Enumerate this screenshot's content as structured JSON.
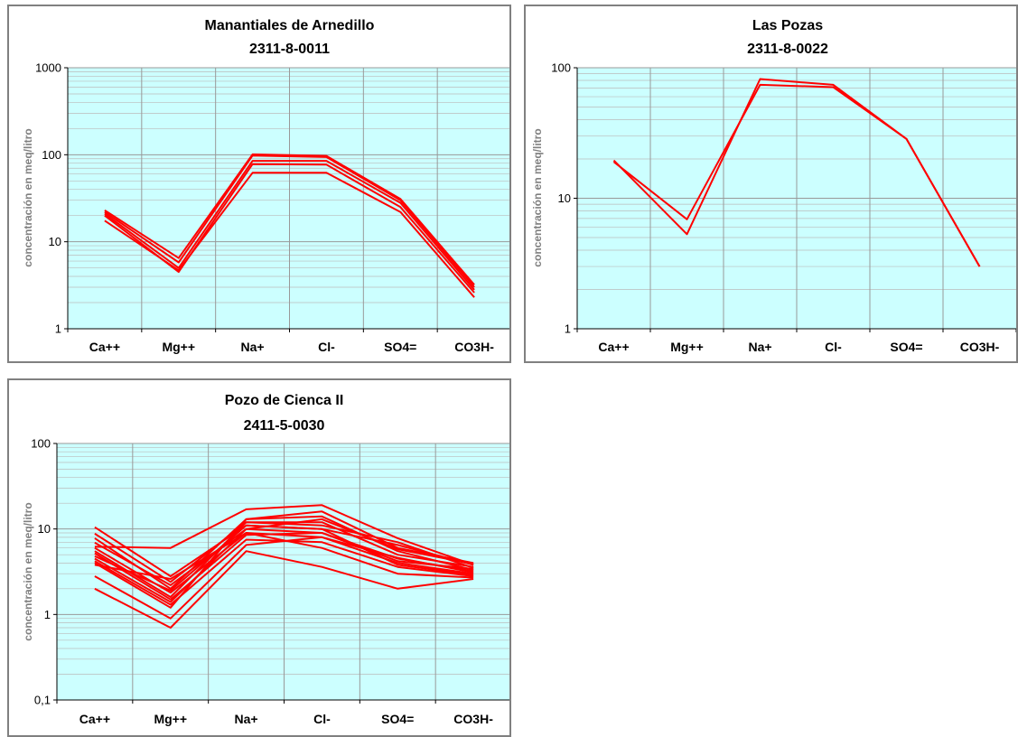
{
  "colors": {
    "plot_bg": "#ccffff",
    "line": "#ff0000",
    "grid": "#999999",
    "minor_grid": "#bbbbbb",
    "border": "#808080"
  },
  "chart_data": [
    {
      "type": "line",
      "title": "Manantiales de Arnedillo",
      "subtitle": "2311-8-0011",
      "ylabel": "concentración en meq/litro",
      "yscale": "log",
      "ylim": [
        1,
        1000
      ],
      "yticks": [
        "1",
        "10",
        "100",
        "1000"
      ],
      "categories": [
        "Ca++",
        "Mg++",
        "Na+",
        "Cl-",
        "SO4=",
        "CO3H-"
      ],
      "series": [
        {
          "values": [
            23,
            6.5,
            101,
            97,
            31,
            3.2
          ]
        },
        {
          "values": [
            22,
            5.8,
            98,
            94,
            30,
            3.0
          ]
        },
        {
          "values": [
            21,
            5.0,
            85,
            85,
            28,
            2.8
          ]
        },
        {
          "values": [
            20,
            4.5,
            78,
            77,
            25,
            2.6
          ]
        },
        {
          "values": [
            17.5,
            4.7,
            62,
            62,
            22,
            2.3
          ]
        }
      ]
    },
    {
      "type": "line",
      "title": "Las Pozas",
      "subtitle": "2311-8-0022",
      "ylabel": "concentración en meq/litro",
      "yscale": "log",
      "ylim": [
        1,
        100
      ],
      "yticks": [
        "1",
        "10",
        "100"
      ],
      "categories": [
        "Ca++",
        "Mg++",
        "Na+",
        "Cl-",
        "SO4=",
        "CO3H-"
      ],
      "series": [
        {
          "values": [
            19.5,
            5.3,
            82,
            74,
            28.5,
            3.0
          ]
        },
        {
          "values": [
            19.0,
            6.9,
            74,
            71,
            28.5,
            3.0
          ]
        }
      ]
    },
    {
      "type": "line",
      "title": "Pozo de Cienca II",
      "subtitle": "2411-5-0030",
      "ylabel": "concentración en meq/litro",
      "yscale": "log",
      "ylim": [
        0.1,
        100
      ],
      "yticks": [
        "0,1",
        "1",
        "10",
        "100"
      ],
      "categories": [
        "Ca++",
        "Mg++",
        "Na+",
        "Cl-",
        "SO4=",
        "CO3H-"
      ],
      "series": [
        {
          "values": [
            10.5,
            2.8,
            11,
            10,
            6.5,
            3.8
          ]
        },
        {
          "values": [
            8.8,
            2.4,
            12,
            11,
            7.0,
            3.5
          ]
        },
        {
          "values": [
            7.8,
            2.0,
            13,
            14,
            5.5,
            3.3
          ]
        },
        {
          "values": [
            6.9,
            2.2,
            10,
            9,
            4.5,
            3.2
          ]
        },
        {
          "values": [
            6.2,
            6.0,
            17,
            19,
            7.8,
            3.8
          ]
        },
        {
          "values": [
            6.0,
            1.8,
            9,
            8,
            4.0,
            3.0
          ]
        },
        {
          "values": [
            5.5,
            1.6,
            12,
            12,
            5.0,
            3.6
          ]
        },
        {
          "values": [
            5.2,
            1.5,
            8.5,
            9,
            4.2,
            3.4
          ]
        },
        {
          "values": [
            4.8,
            1.9,
            11,
            10,
            3.8,
            2.9
          ]
        },
        {
          "values": [
            4.5,
            1.4,
            10,
            13,
            5.8,
            3.9
          ]
        },
        {
          "values": [
            4.2,
            1.3,
            7.5,
            7,
            3.6,
            2.8
          ]
        },
        {
          "values": [
            4.0,
            1.2,
            13,
            16,
            6.0,
            4.0
          ]
        },
        {
          "values": [
            3.8,
            2.6,
            9,
            6,
            3.0,
            2.7
          ]
        },
        {
          "values": [
            2.8,
            0.9,
            6.5,
            8,
            4.6,
            3.1
          ]
        },
        {
          "values": [
            2.0,
            0.7,
            5.5,
            3.6,
            2.0,
            2.6
          ]
        }
      ]
    }
  ]
}
